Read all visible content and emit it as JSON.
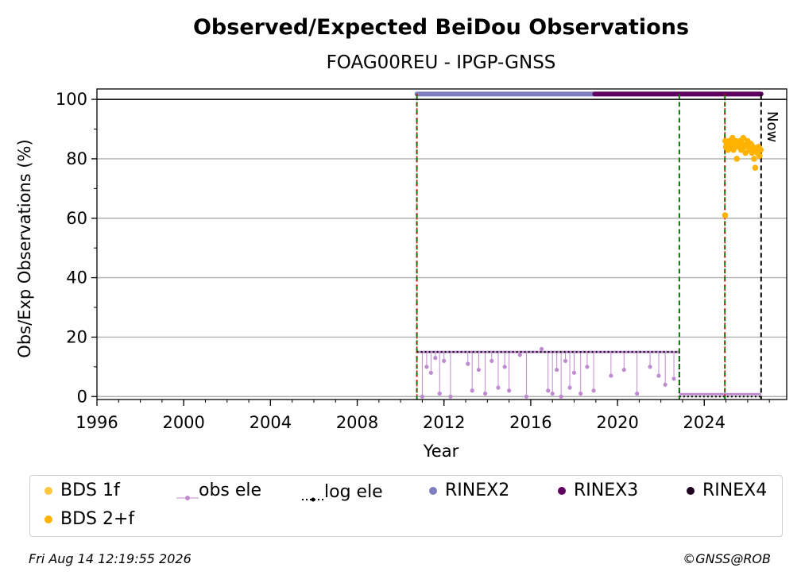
{
  "chart_data": {
    "type": "scatter",
    "title": "Observed/Expected BeiDou Observations",
    "subtitle": "FOAG00REU - IPGP-GNSS",
    "xlabel": "Year",
    "ylabel": "Obs/Exp Observations (%)",
    "xlim": [
      1996,
      2027.8
    ],
    "ylim": [
      -1,
      103.5
    ],
    "x_ticks": [
      1996,
      2000,
      2004,
      2008,
      2012,
      2016,
      2020,
      2024
    ],
    "y_ticks": [
      0,
      20,
      40,
      60,
      80,
      100
    ],
    "grid": "horizontal",
    "now_label": "Now",
    "now_x": 2026.62,
    "vertical_markers": [
      {
        "x": 2010.75,
        "style": "green-dashed"
      },
      {
        "x": 2010.75,
        "style": "red-dotted"
      },
      {
        "x": 2022.85,
        "style": "green-dashed"
      },
      {
        "x": 2024.95,
        "style": "green-dashed"
      },
      {
        "x": 2024.95,
        "style": "red-dotted"
      }
    ],
    "series": [
      {
        "name": "BDS 1f",
        "color": "#ffc640",
        "points": []
      },
      {
        "name": "BDS 2+f",
        "color": "#ffb300",
        "points": [
          [
            2024.96,
            61
          ],
          [
            2024.97,
            86
          ],
          [
            2025.0,
            84
          ],
          [
            2025.05,
            85
          ],
          [
            2025.1,
            83
          ],
          [
            2025.15,
            86
          ],
          [
            2025.2,
            84
          ],
          [
            2025.25,
            85
          ],
          [
            2025.3,
            87
          ],
          [
            2025.35,
            83
          ],
          [
            2025.4,
            84
          ],
          [
            2025.45,
            86
          ],
          [
            2025.5,
            80
          ],
          [
            2025.55,
            85
          ],
          [
            2025.6,
            84
          ],
          [
            2025.65,
            86
          ],
          [
            2025.7,
            83
          ],
          [
            2025.75,
            85
          ],
          [
            2025.8,
            87
          ],
          [
            2025.85,
            84
          ],
          [
            2025.9,
            82
          ],
          [
            2025.95,
            85
          ],
          [
            2026.0,
            86
          ],
          [
            2026.05,
            84
          ],
          [
            2026.1,
            83
          ],
          [
            2026.15,
            85
          ],
          [
            2026.2,
            82
          ],
          [
            2026.25,
            84
          ],
          [
            2026.3,
            80
          ],
          [
            2026.35,
            77
          ],
          [
            2026.4,
            83
          ],
          [
            2026.45,
            82
          ],
          [
            2026.5,
            84
          ],
          [
            2026.55,
            81
          ],
          [
            2026.6,
            83
          ]
        ]
      },
      {
        "name": "obs ele",
        "color": "#bf8bcf",
        "baseline": 15,
        "x_range": [
          2010.75,
          2022.85
        ],
        "drops": [
          [
            2011.0,
            0
          ],
          [
            2011.2,
            10
          ],
          [
            2011.4,
            8
          ],
          [
            2011.6,
            13
          ],
          [
            2011.8,
            1
          ],
          [
            2012.0,
            12
          ],
          [
            2012.3,
            0
          ],
          [
            2013.1,
            11
          ],
          [
            2013.3,
            2
          ],
          [
            2013.6,
            9
          ],
          [
            2013.9,
            1
          ],
          [
            2014.2,
            12
          ],
          [
            2014.5,
            3
          ],
          [
            2014.8,
            10
          ],
          [
            2015.0,
            2
          ],
          [
            2015.5,
            14
          ],
          [
            2015.8,
            0
          ],
          [
            2016.5,
            16
          ],
          [
            2016.8,
            2
          ],
          [
            2017.0,
            1
          ],
          [
            2017.2,
            9
          ],
          [
            2017.4,
            0
          ],
          [
            2017.6,
            12
          ],
          [
            2017.8,
            3
          ],
          [
            2018.0,
            8
          ],
          [
            2018.3,
            1
          ],
          [
            2018.6,
            10
          ],
          [
            2018.9,
            2
          ],
          [
            2019.7,
            7
          ],
          [
            2020.3,
            9
          ],
          [
            2020.9,
            1
          ],
          [
            2021.5,
            10
          ],
          [
            2021.9,
            7
          ],
          [
            2022.2,
            4
          ],
          [
            2022.6,
            6
          ]
        ]
      },
      {
        "name": "log ele",
        "color": "#000000",
        "segments": [
          {
            "x": [
              2010.75,
              2022.85
            ],
            "y": 15
          },
          {
            "x": [
              2022.85,
              2026.62
            ],
            "y": 0
          }
        ]
      },
      {
        "name": "RINEX2",
        "color": "#7f7fbf",
        "segments": [
          {
            "x": [
              2010.75,
              2018.95
            ],
            "y": 101.8
          }
        ]
      },
      {
        "name": "RINEX3",
        "color": "#5f0060",
        "segments": [
          {
            "x": [
              2018.95,
              2026.62
            ],
            "y": 101.8
          }
        ]
      },
      {
        "name": "RINEX4",
        "color": "#200020",
        "segments": []
      }
    ]
  },
  "legend": {
    "items": [
      {
        "label": "BDS 1f"
      },
      {
        "label": "obs ele"
      },
      {
        "label": "log ele"
      },
      {
        "label": "RINEX2"
      },
      {
        "label": "RINEX3"
      },
      {
        "label": "RINEX4"
      },
      {
        "label": "BDS 2+f"
      }
    ]
  },
  "footer": {
    "timestamp": "Fri Aug 14 12:19:55 2026",
    "credit": "©GNSS@ROB"
  }
}
